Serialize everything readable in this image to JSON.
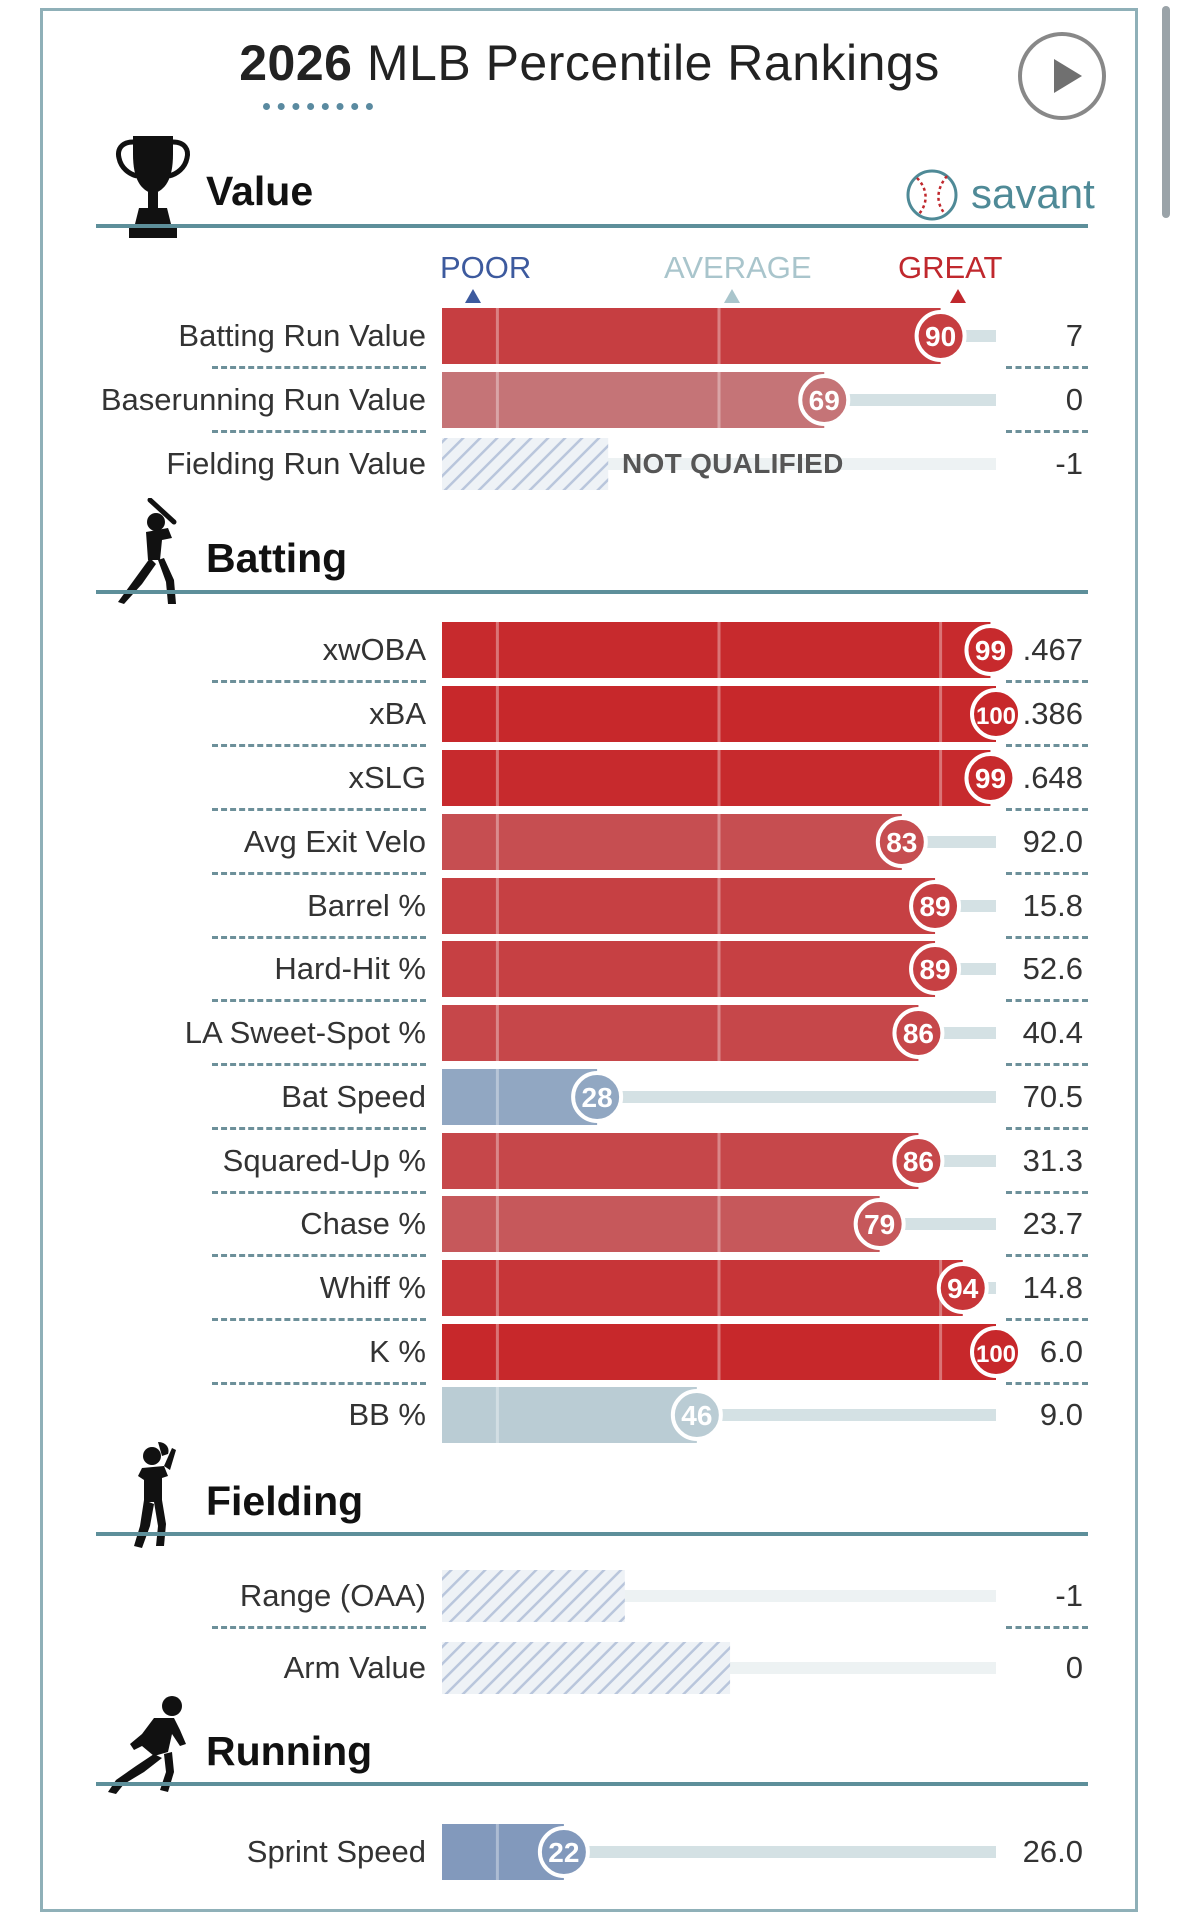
{
  "header": {
    "year": "2026",
    "title": "MLB Percentile Rankings",
    "brand": "savant"
  },
  "axis": {
    "poor": "POOR",
    "average": "AVERAGE",
    "great": "GREAT"
  },
  "colors": {
    "accent": "#5d8f9a",
    "poor_color": "#3d5a9e",
    "average_color": "#a9c5cc",
    "great_color": "#c0282d",
    "not_qualified_text": "NOT QUALIFIED"
  },
  "sections": [
    {
      "title": "Value"
    },
    {
      "title": "Batting"
    },
    {
      "title": "Fielding"
    },
    {
      "title": "Running"
    }
  ],
  "chart_data": {
    "type": "bar",
    "title": "2026 MLB Percentile Rankings",
    "xlim": [
      0,
      100
    ],
    "scale_labels": [
      "POOR",
      "AVERAGE",
      "GREAT"
    ],
    "rows": [
      {
        "section": "Value",
        "label": "Batting Run Value",
        "percentile": 90,
        "value": "7",
        "qualified": true
      },
      {
        "section": "Value",
        "label": "Baserunning Run Value",
        "percentile": 69,
        "value": "0",
        "qualified": true
      },
      {
        "section": "Value",
        "label": "Fielding Run Value",
        "percentile": null,
        "value": "-1",
        "qualified": false,
        "note": "NOT QUALIFIED",
        "stripe_percentile": 30
      },
      {
        "section": "Batting",
        "label": "xwOBA",
        "percentile": 99,
        "value": ".467",
        "qualified": true
      },
      {
        "section": "Batting",
        "label": "xBA",
        "percentile": 100,
        "value": ".386",
        "qualified": true
      },
      {
        "section": "Batting",
        "label": "xSLG",
        "percentile": 99,
        "value": ".648",
        "qualified": true
      },
      {
        "section": "Batting",
        "label": "Avg Exit Velo",
        "percentile": 83,
        "value": "92.0",
        "qualified": true
      },
      {
        "section": "Batting",
        "label": "Barrel %",
        "percentile": 89,
        "value": "15.8",
        "qualified": true
      },
      {
        "section": "Batting",
        "label": "Hard-Hit %",
        "percentile": 89,
        "value": "52.6",
        "qualified": true
      },
      {
        "section": "Batting",
        "label": "LA Sweet-Spot %",
        "percentile": 86,
        "value": "40.4",
        "qualified": true
      },
      {
        "section": "Batting",
        "label": "Bat Speed",
        "percentile": 28,
        "value": "70.5",
        "qualified": true
      },
      {
        "section": "Batting",
        "label": "Squared-Up %",
        "percentile": 86,
        "value": "31.3",
        "qualified": true
      },
      {
        "section": "Batting",
        "label": "Chase %",
        "percentile": 79,
        "value": "23.7",
        "qualified": true
      },
      {
        "section": "Batting",
        "label": "Whiff %",
        "percentile": 94,
        "value": "14.8",
        "qualified": true
      },
      {
        "section": "Batting",
        "label": "K %",
        "percentile": 100,
        "value": "6.0",
        "qualified": true
      },
      {
        "section": "Batting",
        "label": "BB %",
        "percentile": 46,
        "value": "9.0",
        "qualified": true
      },
      {
        "section": "Fielding",
        "label": "Range (OAA)",
        "percentile": null,
        "value": "-1",
        "qualified": false,
        "stripe_percentile": 33
      },
      {
        "section": "Fielding",
        "label": "Arm Value",
        "percentile": null,
        "value": "0",
        "qualified": false,
        "stripe_percentile": 52
      },
      {
        "section": "Running",
        "label": "Sprint Speed",
        "percentile": 22,
        "value": "26.0",
        "qualified": true
      }
    ]
  }
}
